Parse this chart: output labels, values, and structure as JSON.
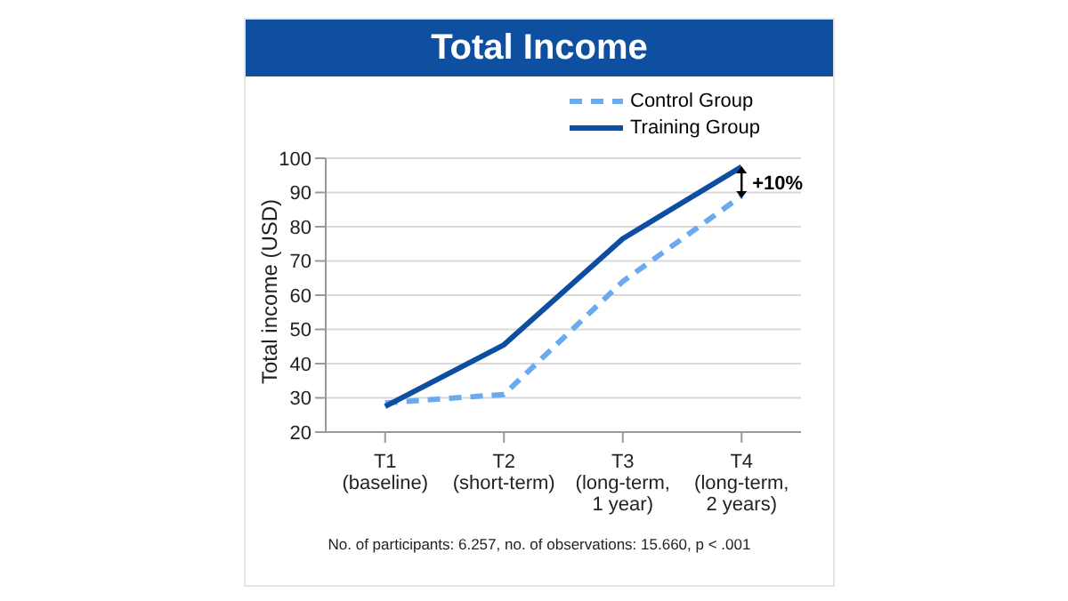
{
  "chart_data": {
    "type": "line",
    "title": "Total Income",
    "ylabel": "Total income (USD)",
    "categories": [
      "T1\n(baseline)",
      "T2\n(short-term)",
      "T3\n(long-term,\n1 year)",
      "T4\n(long-term,\n2 years)"
    ],
    "series": [
      {
        "name": "Control Group",
        "color": "#6aaaf0",
        "values": [
          28.5,
          31,
          64,
          89
        ],
        "line_style": "dashed"
      },
      {
        "name": "Training Group",
        "color": "#0d4ea0",
        "values": [
          27.5,
          45.5,
          76.5,
          97.5
        ],
        "line_style": "solid"
      }
    ],
    "ylim": [
      20,
      100
    ],
    "yticks": [
      20,
      30,
      40,
      50,
      60,
      70,
      80,
      90,
      100
    ],
    "grid": "y",
    "legend": "top right",
    "marker": "none",
    "annotations": [
      {
        "text": "+10%",
        "x": "T4\n(long-term,\n2 years)",
        "y": 93
      },
      "No. of participants: 6.257, no. of observations: 15.660, p < .001"
    ]
  }
}
